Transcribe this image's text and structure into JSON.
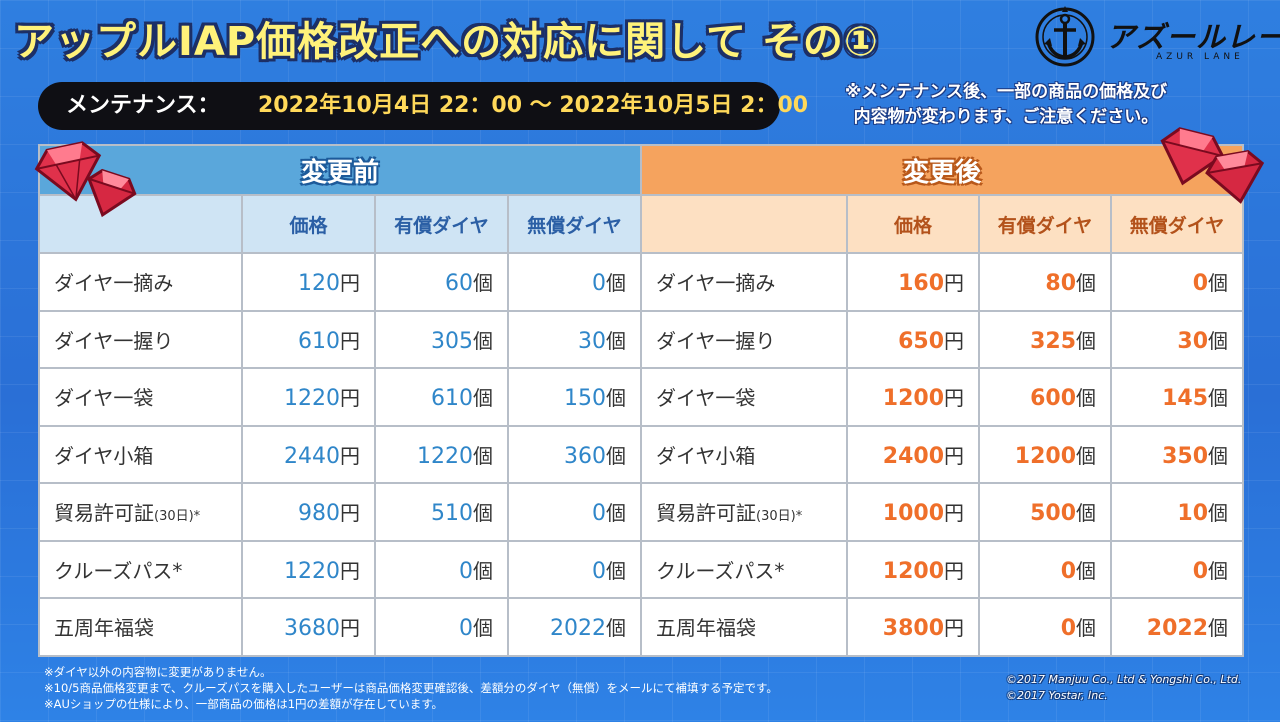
{
  "title": "アップルIAP価格改正への対応に関して その①",
  "logo": {
    "name": "アズールレーン",
    "sub": "AZUR LANE"
  },
  "maintenance": {
    "label": "メンテナンス：",
    "period": "2022年10月4日 22：00 ～ 2022年10月5日 2：00"
  },
  "notice_lines": [
    "※メンテナンス後、一部の商品の価格及び",
    "内容物が変わります、ご注意ください。"
  ],
  "table": {
    "before_header": "変更前",
    "after_header": "変更後",
    "columns": [
      "価格",
      "有償ダイヤ",
      "無償ダイヤ"
    ],
    "unit_price": "円",
    "unit_count": "個",
    "rows": [
      {
        "name": "ダイヤ一摘み",
        "note": "",
        "before": [
          "120",
          "60",
          "0"
        ],
        "after": [
          "160",
          "80",
          "0"
        ]
      },
      {
        "name": "ダイヤ一握り",
        "note": "",
        "before": [
          "610",
          "305",
          "30"
        ],
        "after": [
          "650",
          "325",
          "30"
        ]
      },
      {
        "name": "ダイヤ一袋",
        "note": "",
        "before": [
          "1220",
          "610",
          "150"
        ],
        "after": [
          "1200",
          "600",
          "145"
        ]
      },
      {
        "name": "ダイヤ小箱",
        "note": "",
        "before": [
          "2440",
          "1220",
          "360"
        ],
        "after": [
          "2400",
          "1200",
          "350"
        ]
      },
      {
        "name": "貿易許可証",
        "note": "(30日)*",
        "before": [
          "980",
          "510",
          "0"
        ],
        "after": [
          "1000",
          "500",
          "10"
        ]
      },
      {
        "name": "クルーズパス*",
        "note": "",
        "before": [
          "1220",
          "0",
          "0"
        ],
        "after": [
          "1200",
          "0",
          "0"
        ]
      },
      {
        "name": "五周年福袋",
        "note": "",
        "before": [
          "3680",
          "0",
          "2022"
        ],
        "after": [
          "3800",
          "0",
          "2022"
        ]
      }
    ]
  },
  "footnotes": [
    "※ダイヤ以外の内容物に変更がありません。",
    "※10/5商品価格変更まで、クルーズパスを購入したユーザーは商品価格変更確認後、差額分のダイヤ（無償）をメールにて補填する予定です。",
    "※AUショップの仕様により、一部商品の価格は1円の差額が存在しています。"
  ],
  "copyright": [
    "©2017 Manjuu Co., Ltd & Yongshi Co., Ltd.",
    "©2017 Yostar, Inc."
  ],
  "colors": {
    "background": "#2f7fe0",
    "title_fill": "#fff27a",
    "before_header": "#5aa7db",
    "after_header": "#f5a35e",
    "before_value": "#2f86c9",
    "after_value": "#ef6f2a",
    "maintenance_value": "#ffd95a"
  },
  "icons": {
    "gem": "red-diamond-icon",
    "anchor": "anchor-emblem-icon"
  }
}
